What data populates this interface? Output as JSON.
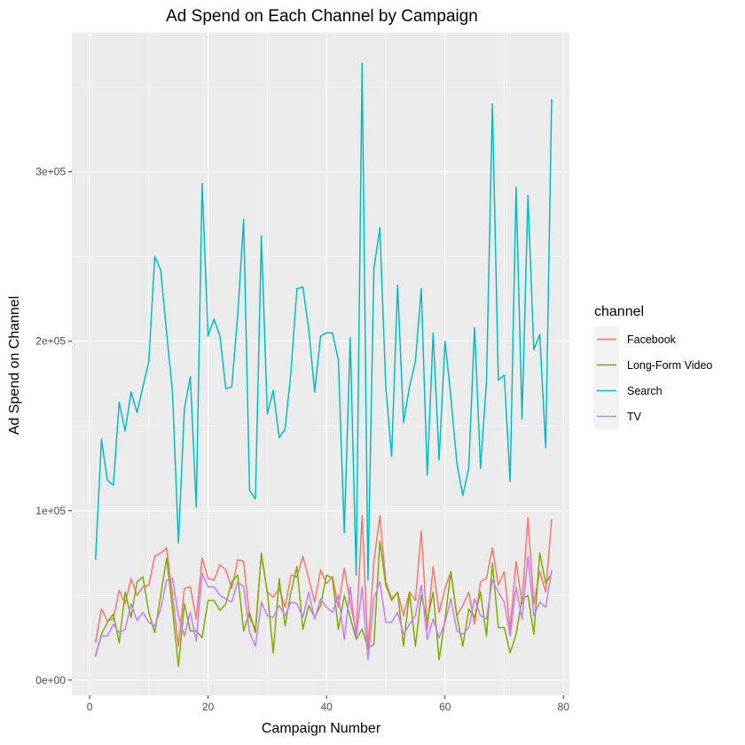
{
  "chart_data": {
    "type": "line",
    "title": "Ad Spend on Each Channel by Campaign",
    "xlabel": "Campaign Number",
    "ylabel": "Ad Spend on Channel",
    "xlim": [
      -3,
      81
    ],
    "ylim": [
      -9000,
      382000
    ],
    "xticks": [
      0,
      20,
      40,
      60,
      80
    ],
    "yticks": [
      0,
      100000,
      200000,
      300000
    ],
    "ytick_labels": [
      "0e+00",
      "1e+05",
      "2e+05",
      "3e+05"
    ],
    "grid": true,
    "legend": {
      "title": "channel",
      "position": "right"
    },
    "x": [
      1,
      2,
      3,
      4,
      5,
      6,
      7,
      8,
      9,
      10,
      11,
      12,
      13,
      14,
      15,
      16,
      17,
      18,
      19,
      20,
      21,
      22,
      23,
      24,
      25,
      26,
      27,
      28,
      29,
      30,
      31,
      32,
      33,
      34,
      35,
      36,
      37,
      38,
      39,
      40,
      41,
      42,
      43,
      44,
      45,
      46,
      47,
      48,
      49,
      50,
      51,
      52,
      53,
      54,
      55,
      56,
      57,
      58,
      59,
      60,
      61,
      62,
      63,
      64,
      65,
      66,
      67,
      68,
      69,
      70,
      71,
      72,
      73,
      74,
      75,
      76,
      77,
      78
    ],
    "series": [
      {
        "name": "Facebook",
        "color": "#F8766D",
        "values": [
          22000,
          42000,
          35000,
          36000,
          53000,
          45000,
          60000,
          50000,
          55000,
          56000,
          73000,
          75000,
          78000,
          50000,
          20000,
          54000,
          55000,
          36000,
          72000,
          60000,
          59000,
          68000,
          65000,
          54000,
          71000,
          70000,
          37000,
          30000,
          74000,
          52000,
          49000,
          54000,
          43000,
          62000,
          61000,
          73000,
          60000,
          46000,
          65000,
          57000,
          61000,
          43000,
          66000,
          46000,
          28000,
          97000,
          18000,
          70000,
          97000,
          58000,
          48000,
          52000,
          38000,
          52000,
          47000,
          88000,
          30000,
          67000,
          40000,
          54000,
          64000,
          38000,
          44000,
          52000,
          33000,
          58000,
          60000,
          78000,
          56000,
          64000,
          30000,
          70000,
          45000,
          96000,
          45000,
          64000,
          52000,
          95000
        ]
      },
      {
        "name": "Long-Form Video",
        "color": "#7CAE00",
        "values": [
          14000,
          27000,
          34000,
          39000,
          22000,
          52000,
          37000,
          58000,
          61000,
          40000,
          28000,
          50000,
          72000,
          42000,
          8000,
          45000,
          29000,
          29000,
          25000,
          47000,
          47000,
          41000,
          45000,
          58000,
          62000,
          29000,
          40000,
          28000,
          75000,
          52000,
          16000,
          60000,
          32000,
          52000,
          67000,
          30000,
          44000,
          37000,
          44000,
          62000,
          60000,
          30000,
          50000,
          37000,
          24000,
          30000,
          19000,
          21000,
          82000,
          56000,
          47000,
          52000,
          20000,
          52000,
          20000,
          50000,
          35000,
          52000,
          12000,
          36000,
          64000,
          38000,
          20000,
          42000,
          37000,
          52000,
          26000,
          69000,
          31000,
          31000,
          16000,
          27000,
          48000,
          50000,
          27000,
          75000,
          57000,
          63000
        ]
      },
      {
        "name": "Search",
        "color": "#00BFC4",
        "values": [
          71000,
          142000,
          118000,
          115000,
          164000,
          147000,
          170000,
          158000,
          173000,
          188000,
          250000,
          242000,
          205000,
          170000,
          81000,
          160000,
          179000,
          102000,
          293000,
          203000,
          213000,
          203000,
          172000,
          173000,
          215000,
          272000,
          112000,
          107000,
          262000,
          157000,
          171000,
          143000,
          148000,
          182000,
          231000,
          232000,
          207000,
          170000,
          203000,
          205000,
          205000,
          189000,
          87000,
          202000,
          62000,
          364000,
          59000,
          243000,
          267000,
          173000,
          132000,
          233000,
          152000,
          173000,
          188000,
          231000,
          121000,
          205000,
          130000,
          200000,
          167000,
          128000,
          109000,
          125000,
          208000,
          125000,
          176000,
          340000,
          177000,
          180000,
          117000,
          291000,
          154000,
          286000,
          195000,
          204000,
          137000,
          343000
        ]
      },
      {
        "name": "TV",
        "color": "#C77CFF",
        "values": [
          15000,
          26000,
          26000,
          33000,
          28000,
          30000,
          45000,
          35000,
          40000,
          34000,
          32000,
          42000,
          59000,
          60000,
          38000,
          26000,
          40000,
          23000,
          63000,
          55000,
          55000,
          50000,
          48000,
          46000,
          58000,
          55000,
          28000,
          20000,
          46000,
          38000,
          37000,
          44000,
          38000,
          46000,
          45000,
          37000,
          52000,
          36000,
          48000,
          43000,
          40000,
          50000,
          24000,
          55000,
          25000,
          55000,
          12000,
          48000,
          58000,
          34000,
          34000,
          40000,
          27000,
          33000,
          38000,
          56000,
          24000,
          36000,
          25000,
          34000,
          48000,
          29000,
          27000,
          31000,
          48000,
          38000,
          36000,
          59000,
          52000,
          46000,
          26000,
          55000,
          36000,
          73000,
          38000,
          46000,
          43000,
          65000
        ]
      }
    ]
  }
}
